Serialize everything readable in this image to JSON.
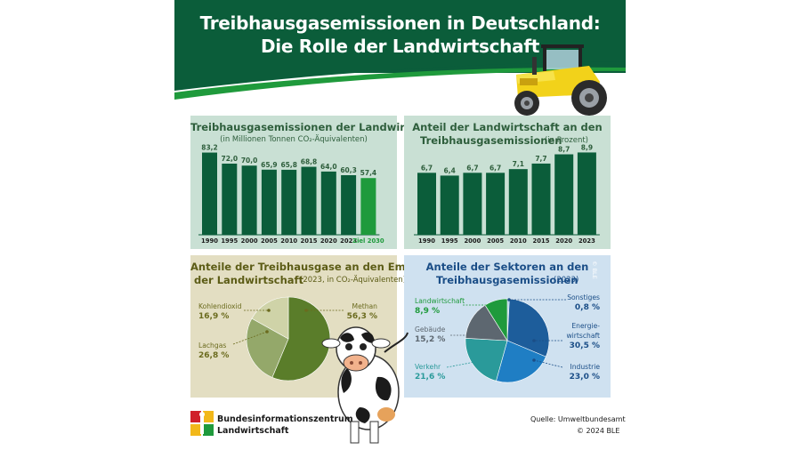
{
  "header": {
    "title_line1": "Treibhausgasemissionen in Deutschland:",
    "title_line2": "Die Rolle der Landwirtschaft"
  },
  "colors": {
    "dark_green": "#0b5d3a",
    "bright_green": "#1f9a3c",
    "panel_green": "#c9e0d4",
    "panel_beige": "#e3dec2",
    "panel_blue": "#cfe1f0",
    "title_green": "#2e5e3c",
    "olive": "#6b6b1e",
    "blue_text": "#1b4e87"
  },
  "chart_data": [
    {
      "type": "bar",
      "title": "Treibhausgasemissionen der Landwirtschaft",
      "subtitle": "(in Millionen Tonnen CO₂-Äquivalenten)",
      "categories": [
        "1990",
        "1995",
        "2000",
        "2005",
        "2010",
        "2015",
        "2020",
        "2023",
        "Ziel 2030"
      ],
      "values": [
        83.2,
        72.0,
        70.0,
        65.9,
        65.8,
        68.8,
        64.0,
        60.3,
        57.4
      ],
      "value_labels": [
        "83,2",
        "72,0",
        "70,0",
        "65,9",
        "65,8",
        "68,8",
        "64,0",
        "60,3",
        "57,4"
      ],
      "ylim": [
        0,
        90
      ]
    },
    {
      "type": "bar",
      "title": "Anteil der Landwirtschaft an den Treibhausgasemissionen",
      "title_line1": "Anteil der Landwirtschaft an den",
      "title_line2": "Treibhausgasemissionen",
      "subtitle": "(in Prozent)",
      "categories": [
        "1990",
        "1995",
        "2000",
        "2005",
        "2010",
        "2015",
        "2020",
        "2023"
      ],
      "values": [
        6.7,
        6.4,
        6.7,
        6.7,
        7.1,
        7.7,
        8.7,
        8.9
      ],
      "value_labels": [
        "6,7",
        "6,4",
        "6,7",
        "6,7",
        "7,1",
        "7,7",
        "8,7",
        "8,9"
      ],
      "ylim": [
        0,
        10
      ]
    },
    {
      "type": "pie",
      "title_line1": "Anteile der Treibhausgase an den Emissionen",
      "title_line2": "der Landwirtschaft",
      "subtitle": "(2023, in CO₂-Äquivalenten)",
      "slices": [
        {
          "name": "Methan",
          "value": 56.3,
          "label": "56,3 %",
          "color": "#5a7d2a"
        },
        {
          "name": "Lachgas",
          "value": 26.8,
          "label": "26,8 %",
          "color": "#94a86a"
        },
        {
          "name": "Kohlendioxid",
          "value": 16.9,
          "label": "16,9 %",
          "color": "#cfd3a8"
        }
      ]
    },
    {
      "type": "pie",
      "title_line1": "Anteile der Sektoren an den",
      "title_line2": "Treibhausgasemissionen",
      "subtitle": "(2023)",
      "slices": [
        {
          "name": "Sonstiges",
          "value": 0.8,
          "label": "0,8 %",
          "color": "#9cc3e0"
        },
        {
          "name": "Energie-\nwirtschaft",
          "value": 30.5,
          "label": "30,5 %",
          "color": "#1d5d9b"
        },
        {
          "name": "Industrie",
          "value": 23.0,
          "label": "23,0 %",
          "color": "#1f7ec4"
        },
        {
          "name": "Verkehr",
          "value": 21.6,
          "label": "21,6 %",
          "color": "#2a9a9a"
        },
        {
          "name": "Gebäude",
          "value": 15.2,
          "label": "15,2 %",
          "color": "#5d6770"
        },
        {
          "name": "Landwirtschaft",
          "value": 8.9,
          "label": "8,9 %",
          "color": "#1f9a3c"
        }
      ]
    }
  ],
  "watermark": "© BLE",
  "footer": {
    "org_line1": "Bundesinformationszentrum",
    "org_line2": "Landwirtschaft",
    "source": "Quelle: Umweltbundesamt",
    "copyright": "© 2024 BLE"
  }
}
